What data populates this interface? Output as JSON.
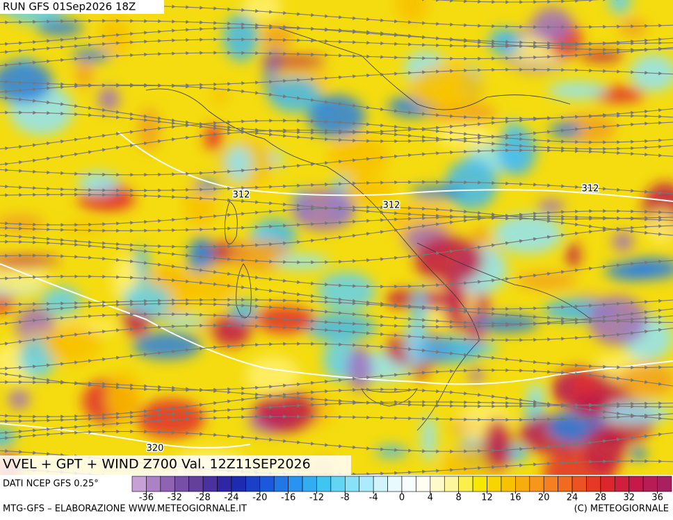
{
  "header": {
    "run": "RUN GFS 01Sep2026 18Z"
  },
  "map": {
    "contour_labels": [
      "312",
      "312",
      "312",
      "320"
    ],
    "title": "VVEL + GPT + WIND Z700 Val. 12Z11SEP2026",
    "source": "DATI NCEP GFS 0.25°"
  },
  "colorbar": {
    "lim": [
      -38,
      38
    ],
    "step": 2,
    "ticks": [
      -36,
      -32,
      -28,
      -24,
      -20,
      -16,
      -12,
      -8,
      -4,
      0,
      4,
      8,
      12,
      16,
      20,
      24,
      28,
      32,
      36
    ],
    "color_stops": [
      "#c8a0d8",
      "#8a5cb0",
      "#5a3a98",
      "#2020a8",
      "#1850d8",
      "#2890f0",
      "#40c8f0",
      "#90e4f8",
      "#e0f8fc",
      "#ffffff",
      "#fff8b0",
      "#f8e800",
      "#f8c000",
      "#f89020",
      "#f06020",
      "#e02828",
      "#c81848",
      "#a82060"
    ]
  },
  "footer": {
    "left": "MTG-GFS – ELABORAZIONE WWW.METEOGIORNALE.IT",
    "right": "(C) METEOGIORNALE"
  }
}
